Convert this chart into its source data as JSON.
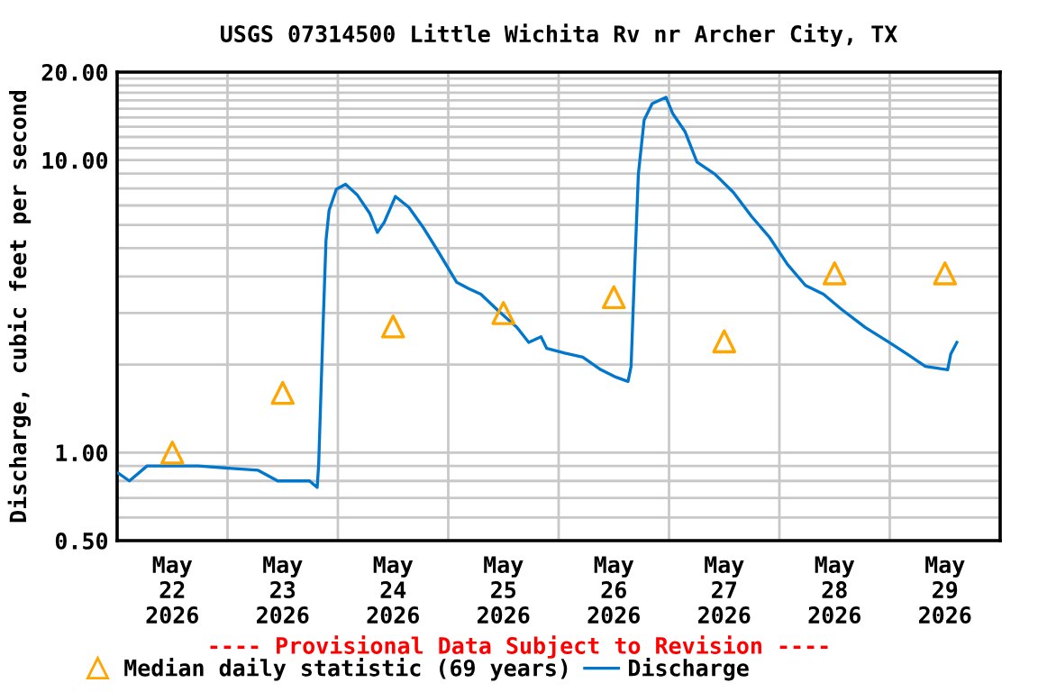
{
  "chart_data": {
    "type": "line",
    "title": "USGS 07314500 Little Wichita Rv nr Archer City, TX",
    "ylabel": "Discharge, cubic feet per second",
    "annotations": [
      "---- Provisional Data Subject to Revision ----"
    ],
    "log": "y",
    "grid": true,
    "legend": "bottom",
    "xlim": [
      "2026-05-22T00:00",
      "2026-05-30T00:00"
    ],
    "xticks": [
      {
        "value": "2026-05-22T12:00",
        "label": "May\n22\n2026"
      },
      {
        "value": "2026-05-23T00:00",
        "label": null
      },
      {
        "value": "2026-05-23T12:00",
        "label": "May\n23\n2026"
      },
      {
        "value": "2026-05-24T00:00",
        "label": null
      },
      {
        "value": "2026-05-24T12:00",
        "label": "May\n24\n2026"
      },
      {
        "value": "2026-05-25T00:00",
        "label": null
      },
      {
        "value": "2026-05-25T12:00",
        "label": "May\n25\n2026"
      },
      {
        "value": "2026-05-26T00:00",
        "label": null
      },
      {
        "value": "2026-05-26T12:00",
        "label": "May\n26\n2026"
      },
      {
        "value": "2026-05-27T00:00",
        "label": null
      },
      {
        "value": "2026-05-27T12:00",
        "label": "May\n27\n2026"
      },
      {
        "value": "2026-05-28T00:00",
        "label": null
      },
      {
        "value": "2026-05-28T12:00",
        "label": "May\n28\n2026"
      },
      {
        "value": "2026-05-29T00:00",
        "label": null
      },
      {
        "value": "2026-05-29T12:00",
        "label": "May\n29\n2026"
      }
    ],
    "ylim": [
      0.5,
      20
    ],
    "yticks": [
      {
        "value": 0.5,
        "label": "0.50"
      },
      {
        "value": 0.6,
        "label": null
      },
      {
        "value": 0.7,
        "label": null
      },
      {
        "value": 0.8,
        "label": null
      },
      {
        "value": 0.9,
        "label": null
      },
      {
        "value": 1,
        "label": "1.00"
      },
      {
        "value": 2,
        "label": null
      },
      {
        "value": 3,
        "label": null
      },
      {
        "value": 4,
        "label": null
      },
      {
        "value": 5,
        "label": null
      },
      {
        "value": 6,
        "label": null
      },
      {
        "value": 7,
        "label": null
      },
      {
        "value": 8,
        "label": null
      },
      {
        "value": 9,
        "label": null
      },
      {
        "value": 10,
        "label": "10.00"
      },
      {
        "value": 11,
        "label": null
      },
      {
        "value": 12,
        "label": null
      },
      {
        "value": 13,
        "label": null
      },
      {
        "value": 14,
        "label": null
      },
      {
        "value": 15,
        "label": null
      },
      {
        "value": 16,
        "label": null
      },
      {
        "value": 17,
        "label": null
      },
      {
        "value": 18,
        "label": null
      },
      {
        "value": 19,
        "label": null
      },
      {
        "value": 20,
        "label": "20.00"
      }
    ],
    "series": [
      {
        "name": "Median daily statistic (69 years)",
        "type": "scatter",
        "marker": "triangle",
        "color": "#ffa500",
        "x": [
          "2026-05-22T12:00",
          "2026-05-23T12:00",
          "2026-05-24T12:00",
          "2026-05-25T12:00",
          "2026-05-26T12:00",
          "2026-05-27T12:00",
          "2026-05-28T12:00",
          "2026-05-29T12:00"
        ],
        "values": [
          1.0,
          1.6,
          2.7,
          3.0,
          3.4,
          2.4,
          4.1,
          4.1
        ]
      },
      {
        "name": "Discharge",
        "marker": "none",
        "line_style": "solid",
        "color": "#0077cc",
        "x": [
          "2026-05-22T00:15",
          "2026-05-22T02:40",
          "2026-05-22T06:30",
          "2026-05-22T17:40",
          "2026-05-23T06:40",
          "2026-05-23T10:55",
          "2026-05-23T17:50",
          "2026-05-23T19:30",
          "2026-05-23T19:50",
          "2026-05-23T20:10",
          "2026-05-23T20:50",
          "2026-05-23T21:25",
          "2026-05-23T22:05",
          "2026-05-23T23:40",
          "2026-05-24T01:40",
          "2026-05-24T04:15",
          "2026-05-24T06:55",
          "2026-05-24T08:35",
          "2026-05-24T10:05",
          "2026-05-24T12:30",
          "2026-05-24T15:25",
          "2026-05-24T18:40",
          "2026-05-24T21:55",
          "2026-05-25T01:50",
          "2026-05-25T04:25",
          "2026-05-25T07:05",
          "2026-05-25T11:00",
          "2026-05-25T14:55",
          "2026-05-25T17:30",
          "2026-05-25T20:10",
          "2026-05-25T21:25",
          "2026-05-26T01:20",
          "2026-05-26T05:15",
          "2026-05-26T09:10",
          "2026-05-26T12:30",
          "2026-05-26T15:05",
          "2026-05-26T15:45",
          "2026-05-26T16:25",
          "2026-05-26T17:20",
          "2026-05-26T18:35",
          "2026-05-26T20:20",
          "2026-05-26T23:20",
          "2026-05-27T00:50",
          "2026-05-27T03:30",
          "2026-05-27T06:05",
          "2026-05-27T10:00",
          "2026-05-27T14:00",
          "2026-05-27T17:55",
          "2026-05-27T21:50",
          "2026-05-28T01:45",
          "2026-05-28T05:40",
          "2026-05-28T09:35",
          "2026-05-28T13:30",
          "2026-05-28T18:40",
          "2026-05-28T23:55",
          "2026-05-29T03:50",
          "2026-05-29T07:45",
          "2026-05-29T12:35",
          "2026-05-29T13:15",
          "2026-05-29T14:35"
        ],
        "values": [
          0.85,
          0.8,
          0.9,
          0.9,
          0.87,
          0.8,
          0.8,
          0.76,
          0.92,
          1.35,
          2.88,
          5.32,
          6.73,
          7.95,
          8.27,
          7.59,
          6.58,
          5.66,
          6.13,
          7.51,
          6.9,
          5.85,
          4.84,
          3.82,
          3.64,
          3.48,
          3.04,
          2.68,
          2.38,
          2.49,
          2.27,
          2.19,
          2.12,
          1.92,
          1.81,
          1.75,
          1.97,
          3.82,
          8.95,
          13.7,
          15.6,
          16.4,
          14.4,
          12.5,
          9.84,
          8.95,
          7.76,
          6.43,
          5.45,
          4.4,
          3.73,
          3.48,
          3.09,
          2.68,
          2.38,
          2.17,
          1.97,
          1.92,
          2.17,
          2.38
        ]
      }
    ]
  }
}
